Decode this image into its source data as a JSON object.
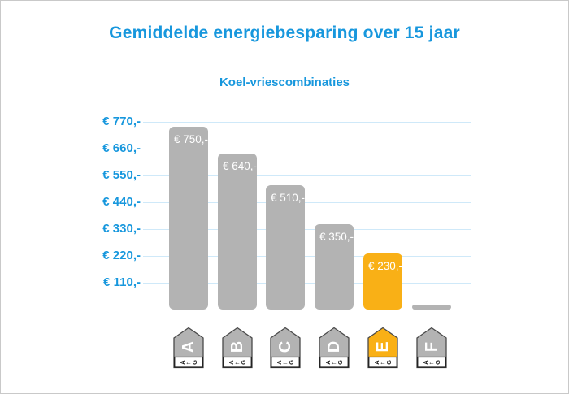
{
  "page": {
    "title": "Gemiddelde energiebesparing over 15 jaar",
    "subtitle": "Koel-vriescombinaties"
  },
  "colors": {
    "accent_blue": "#1797dd",
    "bar_gray": "#b3b3b3",
    "bar_highlight_orange": "#f9b016",
    "gridline_blue": "#cfe9f9",
    "tag_border": "#4a4a4a",
    "tag_scale_box_border": "#1a1a1a",
    "bar_value_text": "#ffffff",
    "frame_border": "#c9c9c9"
  },
  "chart_data": {
    "type": "bar",
    "title": "Gemiddelde energiebesparing over 15 jaar",
    "subtitle": "Koel-vriescombinaties",
    "categories": [
      "A",
      "B",
      "C",
      "D",
      "E",
      "F"
    ],
    "values": [
      750,
      640,
      510,
      350,
      230,
      20
    ],
    "value_labels": [
      "€ 750,-",
      "€ 640,-",
      "€ 510,-",
      "€ 350,-",
      "€ 230,-",
      ""
    ],
    "highlight_category": "E",
    "highlight_index": 4,
    "ylabel": "",
    "xlabel": "",
    "ylim": [
      0,
      770
    ],
    "ytick_values": [
      110,
      220,
      330,
      440,
      550,
      660,
      770
    ],
    "ytick_labels": [
      "€ 110,-",
      "€ 220,-",
      "€ 330,-",
      "€ 440,-",
      "€ 550,-",
      "€ 660,-",
      "€ 770,-"
    ],
    "grid": true,
    "legend": "none",
    "x_axis_icons": "eu-energy-label-tag",
    "energy_scale": {
      "first": "A",
      "arrow": "←",
      "last": "G"
    }
  }
}
